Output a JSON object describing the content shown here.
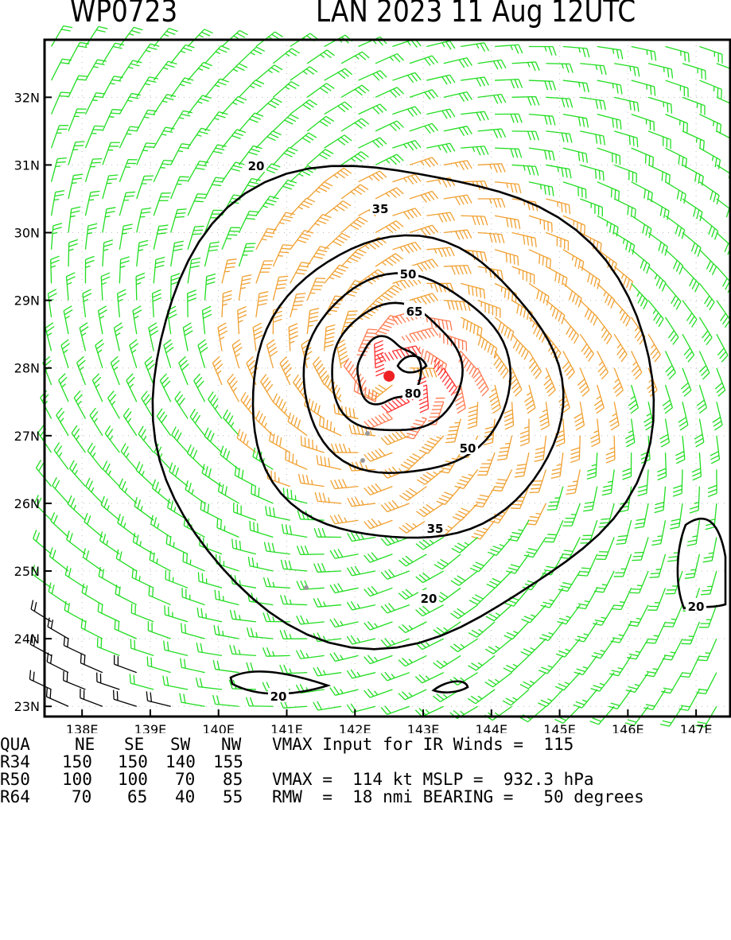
{
  "header": {
    "storm_id": "WP0723",
    "storm_name_date": "LAN 2023 11 Aug 12UTC"
  },
  "map": {
    "lat_labels": [
      "32N",
      "31N",
      "30N",
      "29N",
      "28N",
      "27N",
      "26N",
      "25N",
      "24N",
      "23N"
    ],
    "lon_labels": [
      "138E",
      "139E",
      "140E",
      "141E",
      "142E",
      "143E",
      "144E",
      "145E",
      "146E",
      "147E"
    ],
    "lat_range": [
      22.85,
      32.85
    ],
    "lon_range": [
      137.45,
      147.5
    ],
    "center": {
      "lat": 27.88,
      "lon": 142.5
    },
    "contour_labels": [
      "20",
      "35",
      "50",
      "65",
      "80",
      "20",
      "50",
      "35",
      "20",
      "20"
    ],
    "colors": {
      "calm": "#000000",
      "gale": "#22dd22",
      "storm": "#f0a030",
      "strong": "#ff7a50",
      "hurricane": "#ff3030"
    }
  },
  "bottom": {
    "headers": [
      "QUA",
      "NE",
      "SE",
      "SW",
      "NW"
    ],
    "rows": [
      {
        "label": "R34",
        "values": [
          "150",
          "150",
          "140",
          "155"
        ]
      },
      {
        "label": "R50",
        "values": [
          "100",
          "100",
          "70",
          "85"
        ]
      },
      {
        "label": "R64",
        "values": [
          "70",
          "65",
          "40",
          "55"
        ]
      }
    ],
    "vmax_input": "VMAX Input for IR Winds =  115",
    "vmax_mslp": "VMAX =  114 kt MSLP =  932.3 hPa",
    "rmw_bearing": "RMW  =  18 nmi BEARING =   50 degrees"
  }
}
